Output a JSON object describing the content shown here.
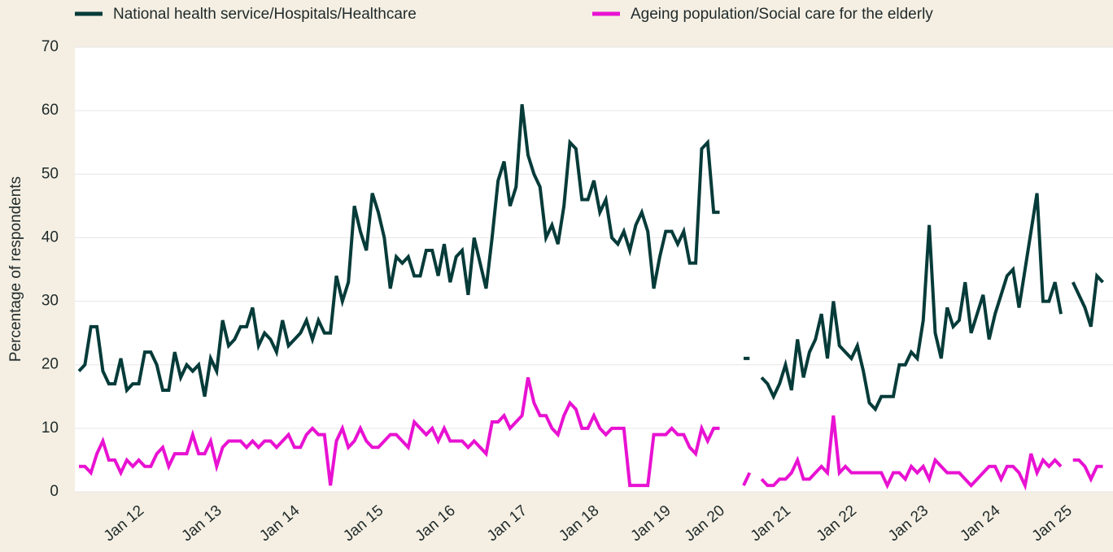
{
  "chart_data": {
    "type": "line",
    "y_label": "Percentage of respondents",
    "categories": [
      null,
      null,
      null,
      null,
      null,
      null,
      null,
      null,
      null,
      null,
      "Jan 12",
      null,
      null,
      null,
      null,
      null,
      null,
      null,
      null,
      null,
      null,
      null,
      null,
      "Jan 13",
      null,
      null,
      null,
      null,
      null,
      null,
      null,
      null,
      null,
      null,
      null,
      null,
      "Jan 14",
      null,
      null,
      null,
      null,
      null,
      null,
      null,
      null,
      null,
      null,
      null,
      null,
      null,
      "Jan 15",
      null,
      null,
      null,
      null,
      null,
      null,
      null,
      null,
      null,
      null,
      null,
      "Jan 16",
      null,
      null,
      null,
      null,
      null,
      null,
      null,
      null,
      null,
      null,
      null,
      "Jan 17",
      null,
      null,
      null,
      null,
      null,
      null,
      null,
      null,
      null,
      null,
      null,
      "Jan 18",
      null,
      null,
      null,
      null,
      null,
      null,
      null,
      null,
      null,
      null,
      null,
      "Jan 19",
      null,
      null,
      null,
      null,
      null,
      null,
      null,
      null,
      "Jan 20",
      null,
      null,
      null,
      null,
      null,
      null,
      null,
      null,
      null,
      null,
      "Jan 21",
      null,
      null,
      null,
      null,
      null,
      null,
      null,
      null,
      null,
      null,
      "Jan 22",
      null,
      null,
      null,
      null,
      null,
      null,
      null,
      null,
      null,
      null,
      null,
      "Jan 23",
      null,
      null,
      null,
      null,
      null,
      null,
      null,
      null,
      null,
      null,
      null,
      "Jan 24",
      null,
      null,
      null,
      null,
      null,
      null,
      null,
      null,
      null,
      null,
      null,
      "Jan 25",
      null,
      null,
      null,
      null,
      null,
      null
    ],
    "series": [
      {
        "name": "National health service/Hospitals/Healthcare",
        "color": "#053b39",
        "values": [
          19,
          20,
          26,
          26,
          19,
          17,
          17,
          21,
          16,
          17,
          17,
          22,
          22,
          20,
          16,
          16,
          22,
          18,
          20,
          19,
          20,
          15,
          21,
          19,
          27,
          23,
          24,
          26,
          26,
          29,
          23,
          25,
          24,
          22,
          27,
          23,
          24,
          25,
          27,
          24,
          27,
          25,
          25,
          34,
          30,
          33,
          45,
          41,
          38,
          47,
          44,
          40,
          32,
          37,
          36,
          37,
          34,
          34,
          38,
          38,
          34,
          39,
          33,
          37,
          38,
          31,
          40,
          36,
          32,
          40,
          49,
          52,
          45,
          48,
          61,
          53,
          50,
          48,
          40,
          42,
          39,
          45,
          55,
          54,
          46,
          46,
          49,
          44,
          46,
          40,
          39,
          41,
          38,
          42,
          44,
          41,
          32,
          37,
          41,
          41,
          39,
          41,
          36,
          36,
          54,
          55,
          44,
          44,
          null,
          null,
          null,
          21,
          21,
          null,
          18,
          17,
          15,
          17,
          20,
          16,
          24,
          18,
          22,
          24,
          28,
          21,
          30,
          23,
          22,
          21,
          23,
          19,
          14,
          13,
          15,
          15,
          15,
          20,
          20,
          22,
          21,
          27,
          42,
          25,
          21,
          29,
          26,
          27,
          33,
          25,
          28,
          31,
          24,
          28,
          31,
          34,
          35,
          29,
          35,
          41,
          47,
          30,
          30,
          33,
          28,
          null,
          33,
          31,
          29,
          26,
          34,
          33
        ]
      },
      {
        "name": "Ageing population/Social care for the elderly",
        "color": "#e812d2",
        "values": [
          4,
          4,
          3,
          6,
          8,
          5,
          5,
          3,
          5,
          4,
          5,
          4,
          4,
          6,
          7,
          4,
          6,
          6,
          6,
          9,
          6,
          6,
          8,
          4,
          7,
          8,
          8,
          8,
          7,
          8,
          7,
          8,
          8,
          7,
          8,
          9,
          7,
          7,
          9,
          10,
          9,
          9,
          1,
          8,
          10,
          7,
          8,
          10,
          8,
          7,
          7,
          8,
          9,
          9,
          8,
          7,
          11,
          10,
          9,
          10,
          8,
          10,
          8,
          8,
          8,
          7,
          8,
          7,
          6,
          11,
          11,
          12,
          10,
          11,
          12,
          18,
          14,
          12,
          12,
          10,
          9,
          12,
          14,
          13,
          10,
          10,
          12,
          10,
          9,
          10,
          10,
          10,
          1,
          1,
          1,
          1,
          9,
          9,
          9,
          10,
          9,
          9,
          7,
          6,
          10,
          8,
          10,
          10,
          null,
          null,
          null,
          1,
          3,
          null,
          2,
          1,
          1,
          2,
          2,
          3,
          5,
          2,
          2,
          3,
          4,
          3,
          12,
          3,
          4,
          3,
          3,
          3,
          3,
          3,
          3,
          1,
          3,
          3,
          2,
          4,
          3,
          4,
          2,
          5,
          4,
          3,
          3,
          3,
          2,
          1,
          2,
          3,
          4,
          4,
          2,
          4,
          4,
          3,
          1,
          6,
          3,
          5,
          4,
          5,
          4,
          null,
          5,
          5,
          4,
          2,
          4,
          4
        ]
      }
    ],
    "ylim": [
      0,
      70
    ],
    "yticks": [
      0,
      10,
      20,
      30,
      40,
      50,
      60,
      70
    ],
    "grid": true,
    "legend": "top"
  }
}
